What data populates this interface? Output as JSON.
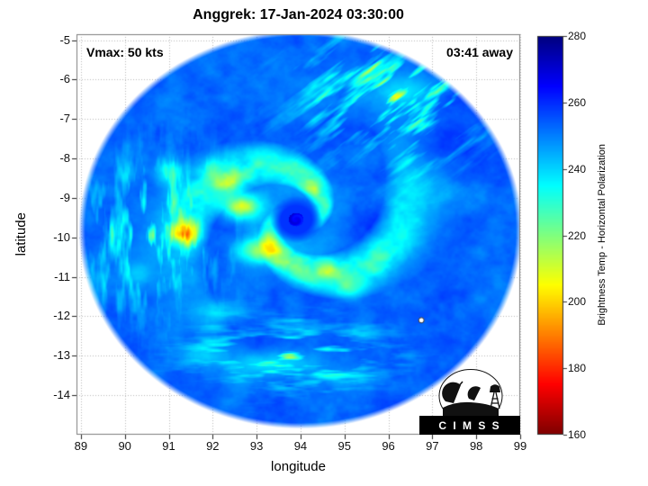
{
  "figure": {
    "annotation_left": "Vmax: 50 kts",
    "annotation_right": "03:41 away"
  },
  "chart_data": {
    "type": "heatmap",
    "title": "Anggrek: 17-Jan-2024 03:30:00",
    "xlabel": "longitude",
    "ylabel": "latitude",
    "xlim": [
      88.9,
      99.0
    ],
    "ylim": [
      -15.0,
      -4.85
    ],
    "xticks": [
      89,
      90,
      91,
      92,
      93,
      94,
      95,
      96,
      97,
      98,
      99
    ],
    "yticks": [
      -5,
      -6,
      -7,
      -8,
      -9,
      -10,
      -11,
      -12,
      -13,
      -14
    ],
    "grid": true,
    "colorbar": {
      "label": "Brightness Temp - Horizontal Polarization",
      "min": 160,
      "max": 280,
      "ticks": [
        160,
        180,
        200,
        220,
        240,
        260,
        280
      ],
      "colormap": "jet_reversed"
    },
    "swath": {
      "center_lon": 94.0,
      "center_lat": -9.8,
      "radius_deg": 4.95,
      "base_temp": 252.5
    },
    "cyclone": {
      "eye": {
        "lon": 93.9,
        "lat": -9.55,
        "eye_temp": 266,
        "moat_temp": 259,
        "moat_radius": 0.6
      },
      "spiral": {
        "twist": 2.2,
        "wall_radius": 0.85,
        "wall_width": 0.5,
        "band_radius": 2.0,
        "band_width": 1.15
      },
      "features": [
        {
          "lon": 92.65,
          "lat": -9.2,
          "sx": 0.45,
          "sy": 0.3,
          "temp": 206
        },
        {
          "lon": 92.35,
          "lat": -8.55,
          "sx": 0.3,
          "sy": 0.25,
          "temp": 222
        },
        {
          "lon": 93.05,
          "lat": -10.35,
          "sx": 0.5,
          "sy": 0.3,
          "temp": 212
        },
        {
          "lon": 91.35,
          "lat": -9.9,
          "sx": 0.35,
          "sy": 0.3,
          "temp": 214
        },
        {
          "lon": 91.0,
          "lat": -8.35,
          "sx": 0.3,
          "sy": 0.3,
          "temp": 232
        },
        {
          "lon": 94.6,
          "lat": -10.9,
          "sx": 0.5,
          "sy": 0.25,
          "temp": 238
        },
        {
          "lon": 95.15,
          "lat": -11.35,
          "sx": 0.4,
          "sy": 0.25,
          "temp": 236
        },
        {
          "lon": 92.2,
          "lat": -11.9,
          "sx": 0.45,
          "sy": 0.3,
          "temp": 238
        },
        {
          "lon": 90.3,
          "lat": -10.9,
          "sx": 0.3,
          "sy": 0.3,
          "temp": 240
        },
        {
          "lon": 96.4,
          "lat": -6.3,
          "sx": 0.7,
          "sy": 0.4,
          "temp": 234
        },
        {
          "lon": 97.6,
          "lat": -5.7,
          "sx": 0.4,
          "sy": 0.3,
          "temp": 230
        },
        {
          "lon": 95.3,
          "lat": -7.9,
          "sx": 0.5,
          "sy": 0.4,
          "temp": 246
        },
        {
          "lon": 93.4,
          "lat": -13.2,
          "sx": 0.9,
          "sy": 0.3,
          "temp": 233
        },
        {
          "lon": 91.8,
          "lat": -13.0,
          "sx": 0.5,
          "sy": 0.25,
          "temp": 240
        },
        {
          "lon": 95.0,
          "lat": -13.6,
          "sx": 0.6,
          "sy": 0.25,
          "temp": 242
        },
        {
          "lon": 96.8,
          "lat": -7.6,
          "sx": 1.3,
          "sy": 1.2,
          "temp": 259
        },
        {
          "lon": 95.5,
          "lat": -9.6,
          "sx": 1.0,
          "sy": 0.8,
          "temp": 258
        }
      ],
      "streak_regions": [
        {
          "lon": 96.2,
          "lat": -6.4,
          "sx": 1.9,
          "sy": 1.5,
          "angle_deg": 40,
          "strength": 55
        },
        {
          "lon": 93.8,
          "lat": -13.0,
          "sx": 2.0,
          "sy": 0.8,
          "angle_deg": 0,
          "strength": 45
        },
        {
          "lon": 90.6,
          "lat": -9.9,
          "sx": 1.4,
          "sy": 1.8,
          "angle_deg": 90,
          "strength": 40
        }
      ]
    },
    "marker": {
      "lon": 96.75,
      "lat": -12.1,
      "style": "white-dot"
    }
  },
  "colors": {
    "background": "#ffffff",
    "grid": "#b8b8b8",
    "axis_box": "#7d7d7d",
    "tick": "#222222",
    "text": "#000000"
  },
  "logo": {
    "text": "C I M S S"
  }
}
